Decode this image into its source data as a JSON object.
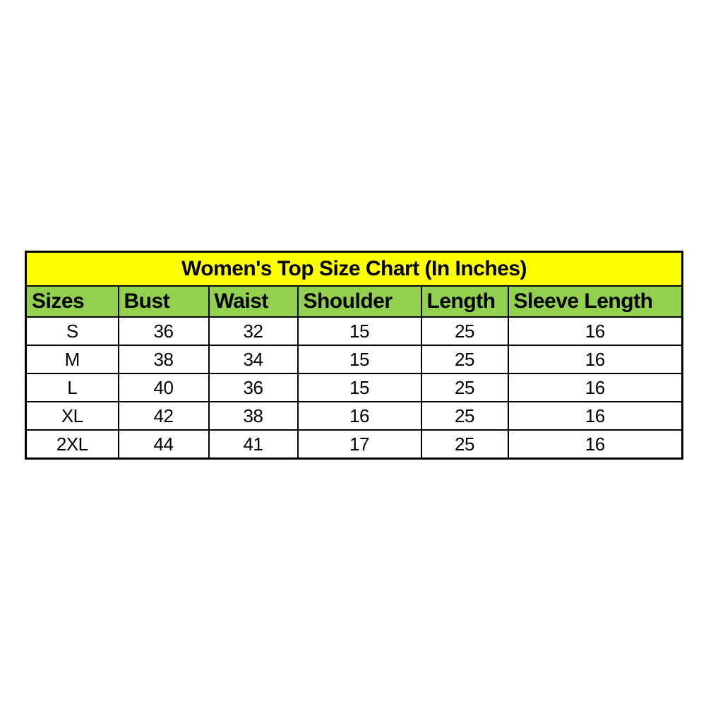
{
  "chart_data": {
    "type": "table",
    "title": "Women's Top Size Chart (In Inches)",
    "columns": [
      "Sizes",
      "Bust",
      "Waist",
      "Shoulder",
      "Length",
      "Sleeve Length"
    ],
    "rows": [
      [
        "S",
        "36",
        "32",
        "15",
        "25",
        "16"
      ],
      [
        "M",
        "38",
        "34",
        "15",
        "25",
        "16"
      ],
      [
        "L",
        "40",
        "36",
        "15",
        "25",
        "16"
      ],
      [
        "XL",
        "42",
        "38",
        "16",
        "25",
        "16"
      ],
      [
        "2XL",
        "44",
        "41",
        "17",
        "25",
        "16"
      ]
    ],
    "colors": {
      "title_bg": "#FFFF00",
      "header_bg": "#92D050",
      "cell_bg": "#FFFFFF",
      "border": "#000000",
      "text": "#000000"
    },
    "layout_hints": {
      "title_row": "full-width colspan band above header",
      "header_align": "left",
      "data_align": "center",
      "grid": "on"
    }
  }
}
